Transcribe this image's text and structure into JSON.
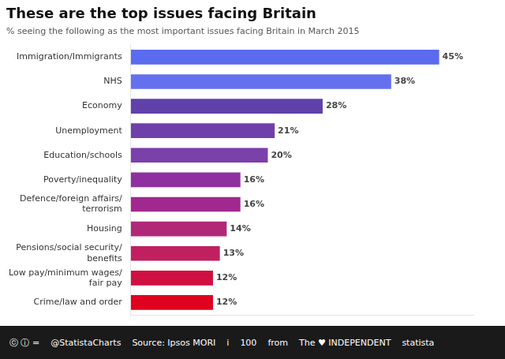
{
  "chart_data": {
    "type": "bar",
    "orientation": "horizontal",
    "title": "These are the top issues facing Britain",
    "subtitle": "% seeing the following as the most important issues facing Britain in March 2015",
    "categories": [
      "Immigration/Immigrants",
      "NHS",
      "Economy",
      "Unemployment",
      "Education/schools",
      "Poverty/inequality",
      "Defence/foreign affairs/\nterrorism",
      "Housing",
      "Pensions/social security/\nbenefits",
      "Low pay/minimum wages/\nfair pay",
      "Crime/law and order"
    ],
    "values": [
      45,
      38,
      28,
      21,
      20,
      16,
      16,
      14,
      13,
      12,
      12
    ],
    "value_labels": [
      "45%",
      "38%",
      "28%",
      "21%",
      "20%",
      "16%",
      "16%",
      "14%",
      "13%",
      "12%",
      "12%"
    ],
    "colors": [
      "#5B6BEE",
      "#6470EE",
      "#6040AA",
      "#7040AA",
      "#7B40AA",
      "#9030A0",
      "#A02890",
      "#B02878",
      "#C02060",
      "#D01040",
      "#E00020"
    ],
    "xlim": [
      0,
      50
    ],
    "xticks": [],
    "grid": false,
    "data_labels": true,
    "tick_labels": "y",
    "annotations": [
      "ⓒ ⓘ =",
      "@StatistaCharts",
      "Source: Ipsos MORI",
      "i",
      "100",
      "from",
      "The ♥ INDEPENDENT",
      "statista"
    ]
  }
}
